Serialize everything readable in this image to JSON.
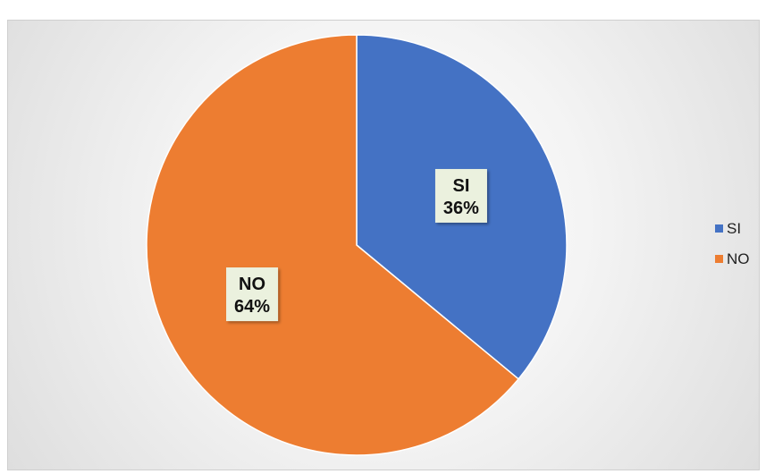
{
  "chart_data": {
    "type": "pie",
    "categories": [
      "SI",
      "NO"
    ],
    "values": [
      36,
      64
    ],
    "data_labels": [
      {
        "name": "SI",
        "value_text": "36%"
      },
      {
        "name": "NO",
        "value_text": "64%"
      }
    ],
    "colors": [
      "#4472c4",
      "#ed7d31"
    ],
    "legend": {
      "placement": "right",
      "entries": [
        "SI",
        "NO"
      ]
    },
    "start_angle": "top, clockwise"
  }
}
